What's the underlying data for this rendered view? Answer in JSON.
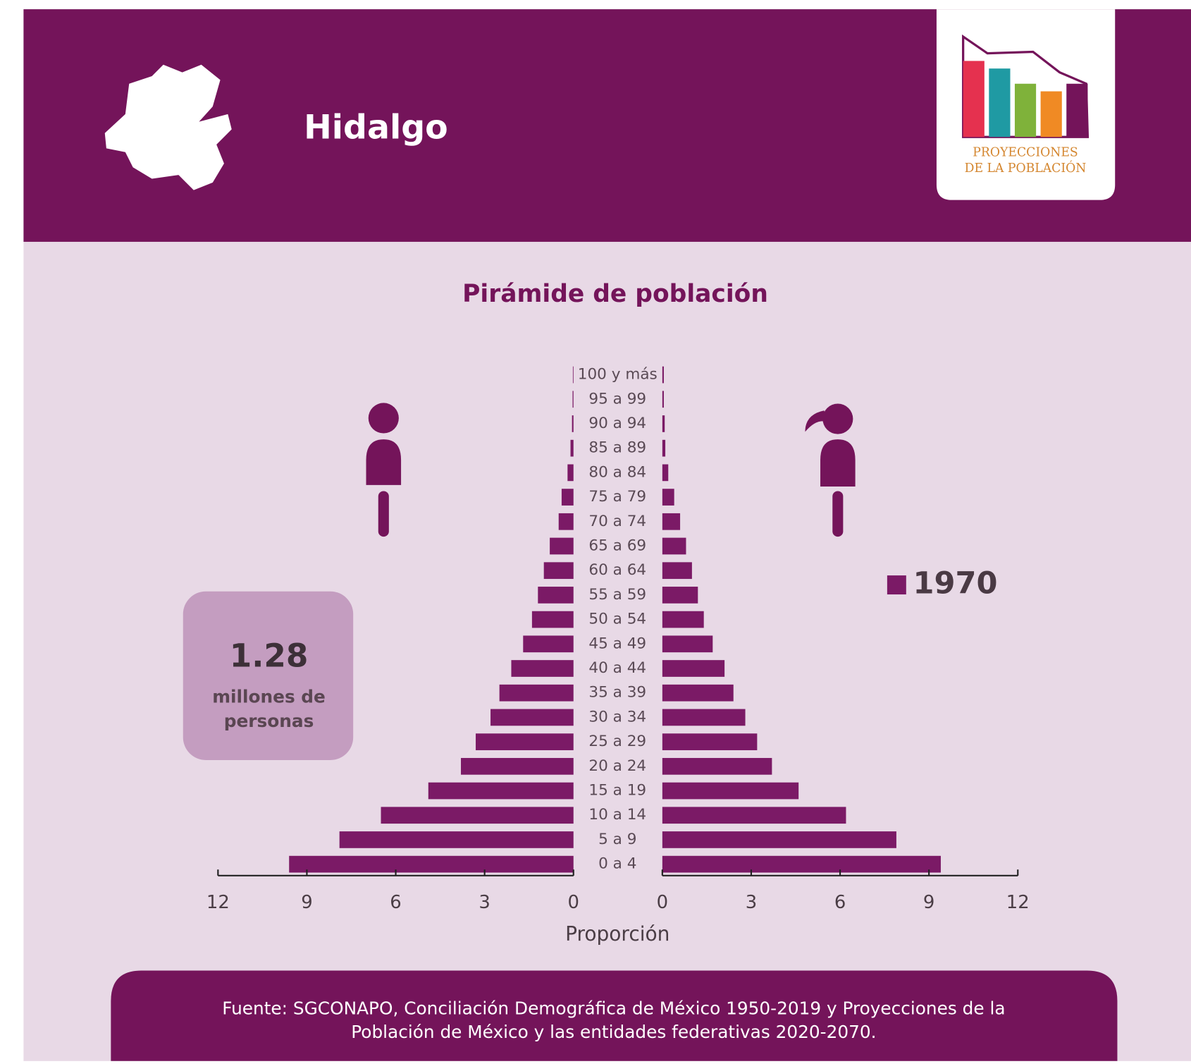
{
  "header": {
    "title": "Hidalgo",
    "logo_line1": "PROYECCIONES",
    "logo_line2": "DE LA POBLACIÓN"
  },
  "summary": {
    "value": "1.28",
    "line1": "millones de",
    "line2": "personas"
  },
  "chart_data": {
    "type": "pyramid",
    "title": "Pirámide de población",
    "xlabel": "Proporción",
    "legend": "1970",
    "categories": [
      "0 a 4",
      "5 a 9",
      "10 a 14",
      "15 a 19",
      "20 a 24",
      "25 a 29",
      "30 a 34",
      "35 a 39",
      "40 a 44",
      "45 a 49",
      "50 a 54",
      "55 a 59",
      "60 a 64",
      "65 a 69",
      "70 a 74",
      "75 a 79",
      "80 a 84",
      "85 a 89",
      "90 a 94",
      "95 a 99",
      "100 y más"
    ],
    "series": [
      {
        "color": "#7b1a66",
        "values": [
          9.6,
          7.9,
          6.5,
          4.9,
          3.8,
          3.3,
          2.8,
          2.5,
          2.1,
          1.7,
          1.4,
          1.2,
          1.0,
          0.8,
          0.5,
          0.4,
          0.2,
          0.1,
          0.05,
          0.03,
          0.02
        ]
      },
      {
        "color": "#7b1a66",
        "values": [
          9.4,
          7.9,
          6.2,
          4.6,
          3.7,
          3.2,
          2.8,
          2.4,
          2.1,
          1.7,
          1.4,
          1.2,
          1.0,
          0.8,
          0.6,
          0.4,
          0.2,
          0.1,
          0.08,
          0.05,
          0.05
        ]
      }
    ],
    "xlim": [
      0,
      12
    ],
    "xticks": [
      0,
      3,
      6,
      9,
      12
    ]
  },
  "footer": {
    "line1": "Fuente: SGCONAPO, Conciliación Demográfica de México 1950-2019 y Proyecciones de la",
    "line2": "Población de México y las entidades federativas 2020-2070."
  }
}
